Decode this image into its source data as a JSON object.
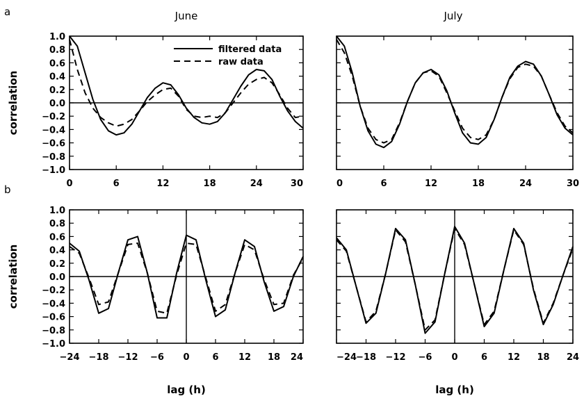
{
  "labels": {
    "row_a": "a",
    "row_b": "b",
    "col_june": "June",
    "col_july": "July"
  },
  "legend": {
    "filtered": "filtered data",
    "raw": "raw data"
  },
  "chart_data": [
    {
      "type": "line",
      "panel": "a-june",
      "title": "June",
      "xlabel": "",
      "ylabel": "correlation",
      "xlim": [
        0,
        30
      ],
      "ylim": [
        -1.0,
        1.0
      ],
      "xticks": [
        "0",
        "6",
        "12",
        "18",
        "24",
        "30"
      ],
      "yticks": [
        "1.0",
        "0.8",
        "0.6",
        "0.4",
        "0.2",
        "0.0",
        "-0.2",
        "-0.4",
        "-0.6",
        "-0.8",
        "-1.0"
      ],
      "legend": "top-right",
      "series": [
        {
          "name": "filtered data",
          "style": "solid",
          "x": [
            0,
            1,
            2,
            3,
            4,
            5,
            6,
            7,
            8,
            9,
            10,
            11,
            12,
            13,
            14,
            15,
            16,
            17,
            18,
            19,
            20,
            21,
            22,
            23,
            24,
            25,
            26,
            27,
            28,
            29,
            30
          ],
          "y": [
            1.0,
            0.85,
            0.45,
            0.05,
            -0.25,
            -0.42,
            -0.48,
            -0.45,
            -0.32,
            -0.12,
            0.08,
            0.22,
            0.3,
            0.27,
            0.12,
            -0.08,
            -0.22,
            -0.3,
            -0.32,
            -0.28,
            -0.15,
            0.05,
            0.25,
            0.42,
            0.5,
            0.48,
            0.35,
            0.1,
            -0.12,
            -0.28,
            -0.38
          ]
        },
        {
          "name": "raw data",
          "style": "dashed",
          "x": [
            0,
            1,
            2,
            3,
            4,
            5,
            6,
            7,
            8,
            9,
            10,
            11,
            12,
            13,
            14,
            15,
            16,
            17,
            18,
            19,
            20,
            21,
            22,
            23,
            24,
            25,
            26,
            27,
            28,
            29,
            30
          ],
          "y": [
            0.95,
            0.5,
            0.15,
            -0.08,
            -0.22,
            -0.3,
            -0.35,
            -0.32,
            -0.25,
            -0.12,
            0.02,
            0.12,
            0.2,
            0.22,
            0.1,
            -0.1,
            -0.2,
            -0.22,
            -0.2,
            -0.22,
            -0.15,
            0.0,
            0.15,
            0.28,
            0.35,
            0.38,
            0.3,
            0.12,
            -0.08,
            -0.22,
            -0.2
          ]
        }
      ]
    },
    {
      "type": "line",
      "panel": "a-july",
      "title": "July",
      "xlabel": "",
      "ylabel": "",
      "xlim": [
        0,
        30
      ],
      "ylim": [
        -1.0,
        1.0
      ],
      "xticks": [
        "0",
        "6",
        "12",
        "18",
        "24",
        "30"
      ],
      "series": [
        {
          "name": "filtered data",
          "style": "solid",
          "x": [
            0,
            1,
            2,
            3,
            4,
            5,
            6,
            7,
            8,
            9,
            10,
            11,
            12,
            13,
            14,
            15,
            16,
            17,
            18,
            19,
            20,
            21,
            22,
            23,
            24,
            25,
            26,
            27,
            28,
            29,
            30
          ],
          "y": [
            1.0,
            0.85,
            0.45,
            -0.05,
            -0.42,
            -0.62,
            -0.67,
            -0.58,
            -0.32,
            0.02,
            0.3,
            0.45,
            0.5,
            0.42,
            0.18,
            -0.15,
            -0.45,
            -0.6,
            -0.62,
            -0.52,
            -0.25,
            0.08,
            0.38,
            0.55,
            0.62,
            0.58,
            0.4,
            0.12,
            -0.18,
            -0.38,
            -0.48
          ]
        },
        {
          "name": "raw data",
          "style": "dashed",
          "x": [
            0,
            1,
            2,
            3,
            4,
            5,
            6,
            7,
            8,
            9,
            10,
            11,
            12,
            13,
            14,
            15,
            16,
            17,
            18,
            19,
            20,
            21,
            22,
            23,
            24,
            25,
            26,
            27,
            28,
            29,
            30
          ],
          "y": [
            0.95,
            0.75,
            0.4,
            -0.05,
            -0.38,
            -0.55,
            -0.6,
            -0.55,
            -0.3,
            0.02,
            0.3,
            0.45,
            0.48,
            0.4,
            0.15,
            -0.12,
            -0.38,
            -0.52,
            -0.55,
            -0.48,
            -0.25,
            0.08,
            0.36,
            0.53,
            0.58,
            0.55,
            0.4,
            0.12,
            -0.15,
            -0.35,
            -0.45
          ]
        }
      ]
    },
    {
      "type": "line",
      "panel": "b-june",
      "title": "",
      "xlabel": "lag (h)",
      "ylabel": "correlation",
      "xlim": [
        -24,
        24
      ],
      "ylim": [
        -1.0,
        1.0
      ],
      "xticks": [
        "-24",
        "-18",
        "-12",
        "-6",
        "0",
        "6",
        "12",
        "18",
        "24"
      ],
      "yticks": [
        "1.0",
        "0.8",
        "0.6",
        "0.4",
        "0.2",
        "0.0",
        "-0.2",
        "-0.4",
        "-0.6",
        "-0.8",
        "-1.0"
      ],
      "series": [
        {
          "name": "filtered data",
          "style": "solid",
          "x": [
            -24,
            -22,
            -20,
            -18,
            -16,
            -14,
            -12,
            -10,
            -8,
            -6,
            -4,
            -2,
            0,
            2,
            4,
            6,
            8,
            10,
            12,
            14,
            16,
            18,
            20,
            22,
            24
          ],
          "y": [
            0.5,
            0.38,
            -0.05,
            -0.55,
            -0.48,
            0.05,
            0.55,
            0.6,
            0.05,
            -0.62,
            -0.62,
            0.05,
            0.62,
            0.55,
            -0.05,
            -0.6,
            -0.5,
            0.05,
            0.55,
            0.45,
            -0.08,
            -0.52,
            -0.45,
            0.0,
            0.3
          ]
        },
        {
          "name": "raw data",
          "style": "dashed",
          "x": [
            -24,
            -22,
            -20,
            -18,
            -16,
            -14,
            -12,
            -10,
            -8,
            -6,
            -4,
            -2,
            0,
            2,
            4,
            6,
            8,
            10,
            12,
            14,
            16,
            18,
            20,
            22,
            24
          ],
          "y": [
            0.45,
            0.35,
            -0.02,
            -0.42,
            -0.38,
            0.05,
            0.48,
            0.5,
            0.05,
            -0.52,
            -0.55,
            0.02,
            0.5,
            0.48,
            -0.02,
            -0.52,
            -0.42,
            0.05,
            0.48,
            0.4,
            -0.05,
            -0.42,
            -0.4,
            0.02,
            0.28
          ]
        }
      ]
    },
    {
      "type": "line",
      "panel": "b-july",
      "title": "",
      "xlabel": "lag (h)",
      "ylabel": "",
      "xlim": [
        -24,
        24
      ],
      "ylim": [
        -1.0,
        1.0
      ],
      "xticks": [
        "-24",
        "-18",
        "-12",
        "-6",
        "0",
        "6",
        "12",
        "18",
        "24"
      ],
      "series": [
        {
          "name": "filtered data",
          "style": "solid",
          "x": [
            -24,
            -22,
            -20,
            -18,
            -16,
            -14,
            -12,
            -10,
            -8,
            -6,
            -4,
            -2,
            0,
            2,
            4,
            6,
            8,
            10,
            12,
            14,
            16,
            18,
            20,
            22,
            24
          ],
          "y": [
            0.58,
            0.4,
            -0.15,
            -0.7,
            -0.55,
            0.05,
            0.72,
            0.55,
            -0.12,
            -0.85,
            -0.68,
            0.05,
            0.75,
            0.5,
            -0.12,
            -0.75,
            -0.55,
            0.1,
            0.72,
            0.5,
            -0.2,
            -0.72,
            -0.42,
            0.02,
            0.45
          ]
        },
        {
          "name": "raw data",
          "style": "dashed",
          "x": [
            -24,
            -22,
            -20,
            -18,
            -16,
            -14,
            -12,
            -10,
            -8,
            -6,
            -4,
            -2,
            0,
            2,
            4,
            6,
            8,
            10,
            12,
            14,
            16,
            18,
            20,
            22,
            24
          ],
          "y": [
            0.55,
            0.38,
            -0.15,
            -0.68,
            -0.52,
            0.05,
            0.7,
            0.52,
            -0.12,
            -0.8,
            -0.65,
            0.05,
            0.72,
            0.48,
            -0.12,
            -0.72,
            -0.52,
            0.1,
            0.7,
            0.48,
            -0.18,
            -0.7,
            -0.4,
            0.02,
            0.42
          ]
        }
      ]
    }
  ]
}
